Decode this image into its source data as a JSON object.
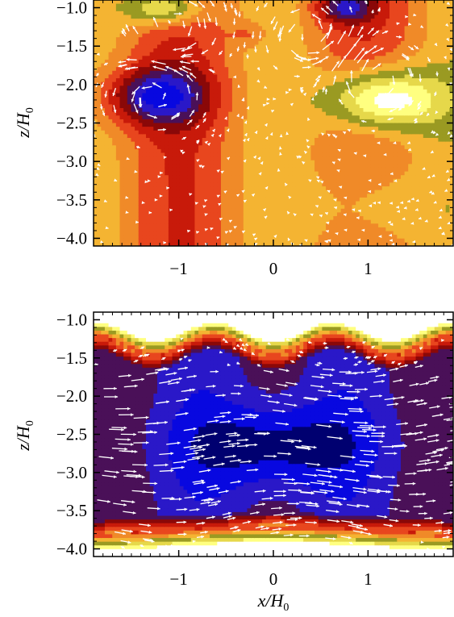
{
  "chart_data": [
    {
      "type": "heatmap",
      "panel": "top",
      "xlabel": "",
      "ylabel": "z/H0",
      "ylabel_parts": {
        "main": "z/H",
        "sub": "0"
      },
      "xlim": [
        -1.9,
        1.9
      ],
      "ylim": [
        -4.1,
        -0.9
      ],
      "y_inverted": true,
      "xticks": [
        -1,
        0,
        1
      ],
      "xtick_labels": [
        "−1",
        "0",
        "1"
      ],
      "yticks": [
        -1.0,
        -1.5,
        -2.0,
        -2.5,
        -3.0,
        -3.5,
        -4.0
      ],
      "ytick_labels": [
        "−1.0",
        "−1.5",
        "−2.0",
        "−2.5",
        "−3.0",
        "−3.5",
        "−4.0"
      ],
      "background_level": 0.12,
      "colormap": [
        "#ffffff",
        "#ffff80",
        "#e6d84a",
        "#9a9a22",
        "#f4b432",
        "#f08a28",
        "#e8461e",
        "#c81a0a",
        "#8a0808",
        "#4a1058",
        "#2a18c8",
        "#0808e0",
        "#000070"
      ],
      "blobs": [
        {
          "x": -1.25,
          "z": -2.15,
          "sx": 0.55,
          "sz": 0.38,
          "amp": -0.78
        },
        {
          "x": 1.15,
          "z": -2.2,
          "sx": 0.6,
          "sz": 0.42,
          "amp": 0.95
        },
        {
          "x": 1.05,
          "z": -3.6,
          "sx": 0.6,
          "sz": 0.7,
          "amp": 0.35
        },
        {
          "x": -1.15,
          "z": -1.0,
          "sx": 0.4,
          "sz": 0.22,
          "amp": 0.7
        },
        {
          "x": 0.75,
          "z": -1.0,
          "sx": 0.3,
          "sz": 0.2,
          "amp": -0.6
        },
        {
          "x": -0.25,
          "z": -1.35,
          "sx": 0.2,
          "sz": 0.15,
          "amp": -0.2
        }
      ],
      "vortices": [
        {
          "x": -1.25,
          "z": -2.15,
          "sign": 1
        },
        {
          "x": 1.1,
          "z": -1.9,
          "sign": -1
        },
        {
          "x": -1.05,
          "z": -1.2,
          "sign": -1
        },
        {
          "x": 0.4,
          "z": -1.35,
          "sign": 1
        }
      ],
      "arrow_color": "#ffffff"
    },
    {
      "type": "heatmap",
      "panel": "bottom",
      "xlabel": "x/H0",
      "xlabel_parts": {
        "main": "x/H",
        "sub": "0"
      },
      "ylabel": "z/H0",
      "ylabel_parts": {
        "main": "z/H",
        "sub": "0"
      },
      "xlim": [
        -1.9,
        1.9
      ],
      "ylim": [
        -4.1,
        -0.9
      ],
      "y_inverted": true,
      "xticks": [
        -1,
        0,
        1
      ],
      "xtick_labels": [
        "−1",
        "0",
        "1"
      ],
      "yticks": [
        -1.0,
        -1.5,
        -2.0,
        -2.5,
        -3.0,
        -3.5,
        -4.0
      ],
      "ytick_labels": [
        "−1.0",
        "−1.5",
        "−2.0",
        "−2.5",
        "−3.0",
        "−3.5",
        "−4.0"
      ],
      "band_top_z": -1.35,
      "band_top_wave_amp": 0.12,
      "band_bottom_z": -3.75,
      "colormap": [
        "#ffffff",
        "#ffff80",
        "#e6d84a",
        "#9a9a22",
        "#f4b432",
        "#f08a28",
        "#e8461e",
        "#c81a0a",
        "#8a0808",
        "#4a1058",
        "#2a18c8",
        "#0808e0",
        "#000070"
      ],
      "core": {
        "x": 0.0,
        "z": -2.65,
        "sx": 0.95,
        "sz": 0.55
      },
      "arrow_color": "#ffffff"
    }
  ]
}
